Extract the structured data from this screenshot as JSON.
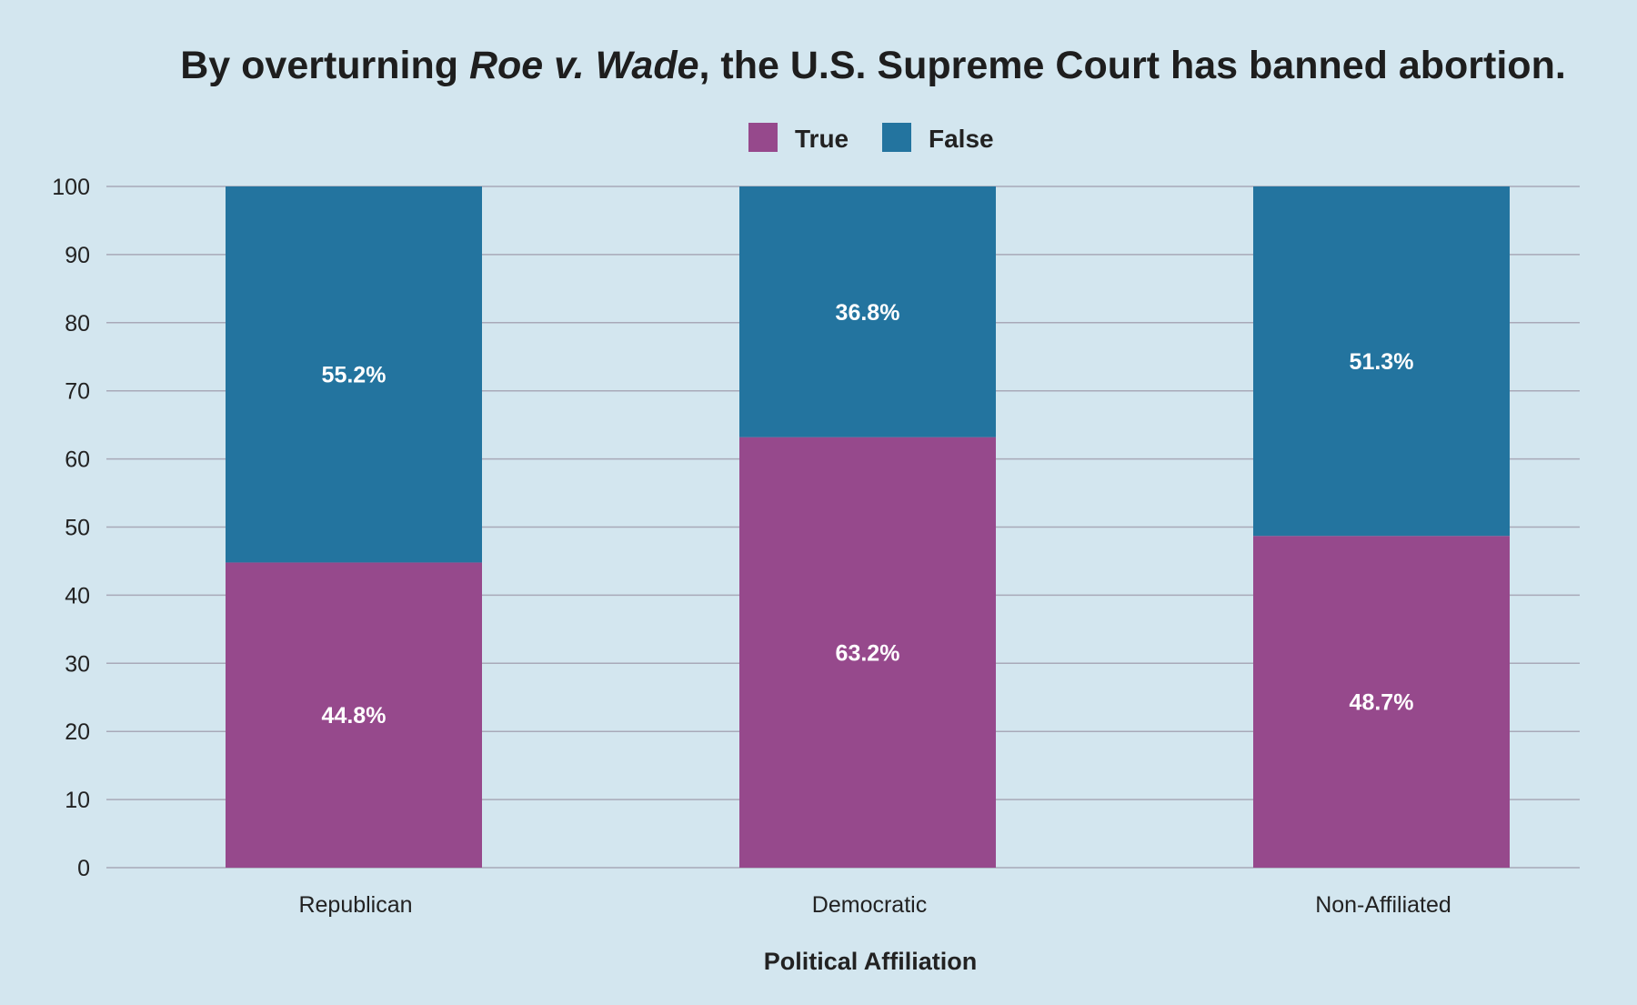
{
  "chart_data": {
    "type": "bar",
    "stacked": true,
    "title_parts": {
      "before": "By overturning ",
      "italic": "Roe v. Wade",
      "after": ", the U.S. Supreme Court has banned abortion."
    },
    "categories": [
      "Republican",
      "Democratic",
      "Non-Affiliated"
    ],
    "series": [
      {
        "name": "True",
        "color": "#96498c",
        "values": [
          44.8,
          63.2,
          48.7
        ],
        "labels": [
          "44.8%",
          "63.2%",
          "48.7%"
        ]
      },
      {
        "name": "False",
        "color": "#23749f",
        "values": [
          55.2,
          36.8,
          51.3
        ],
        "labels": [
          "55.2%",
          "36.8%",
          "51.3%"
        ]
      }
    ],
    "xlabel": "Political Affiliation",
    "ylabel": "",
    "ylim": [
      0,
      100
    ],
    "yticks": [
      0,
      10,
      20,
      30,
      40,
      50,
      60,
      70,
      80,
      90,
      100
    ],
    "grid": true,
    "legend_position": "top-center",
    "background": "#d3e6ef",
    "grid_color": "#a8a9b8"
  }
}
